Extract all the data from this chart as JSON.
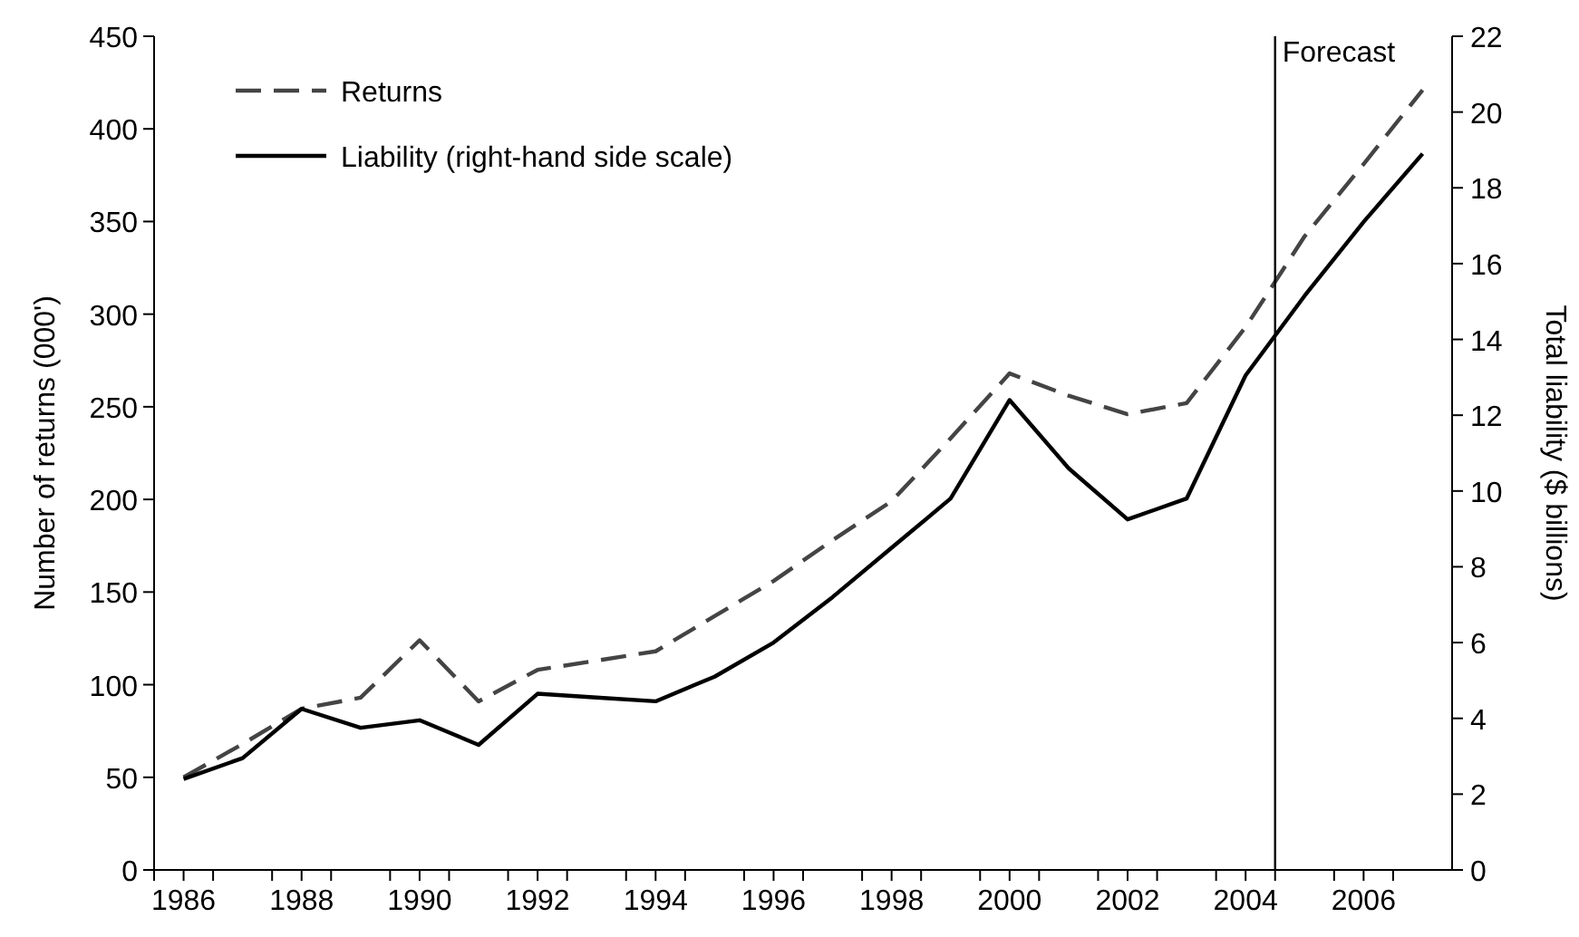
{
  "chart_data": {
    "type": "line",
    "xlabel": null,
    "ylabel": "Number of returns (000')",
    "y2label": "Total liability ($ billions)",
    "x": [
      1986,
      1987,
      1988,
      1989,
      1990,
      1991,
      1992,
      1993,
      1994,
      1995,
      1996,
      1997,
      1998,
      1999,
      2000,
      2001,
      2002,
      2003,
      2004,
      2005,
      2006,
      2007
    ],
    "series": [
      {
        "name": "Returns",
        "color": "#444444",
        "line_style": "dashed",
        "values": [
          50,
          68,
          87,
          93,
          124,
          91,
          108,
          113,
          118,
          137,
          156,
          178,
          199,
          233,
          268,
          256,
          246,
          252,
          293,
          342,
          381,
          421
        ]
      },
      {
        "name": "Liability (right-hand side scale)",
        "color": "#000000",
        "line_style": "solid",
        "axis": "y2",
        "values": [
          2.4,
          2.95,
          4.25,
          3.75,
          3.95,
          3.3,
          4.65,
          4.55,
          4.45,
          5.1,
          6.0,
          7.2,
          8.5,
          9.8,
          12.4,
          10.6,
          9.25,
          9.8,
          13.05,
          15.15,
          17.1,
          18.9
        ]
      }
    ],
    "xlim": [
      1985.5,
      2007.5
    ],
    "xticks": [
      {
        "value": 1985.5,
        "label": null
      },
      {
        "value": 1986,
        "label": "1986"
      },
      {
        "value": 1986.5,
        "label": null
      },
      {
        "value": 1987.5,
        "label": null
      },
      {
        "value": 1988,
        "label": "1988"
      },
      {
        "value": 1988.5,
        "label": null
      },
      {
        "value": 1989.5,
        "label": null
      },
      {
        "value": 1990,
        "label": "1990"
      },
      {
        "value": 1990.5,
        "label": null
      },
      {
        "value": 1991.5,
        "label": null
      },
      {
        "value": 1992,
        "label": "1992"
      },
      {
        "value": 1992.5,
        "label": null
      },
      {
        "value": 1993.5,
        "label": null
      },
      {
        "value": 1994,
        "label": "1994"
      },
      {
        "value": 1994.5,
        "label": null
      },
      {
        "value": 1995.5,
        "label": null
      },
      {
        "value": 1996,
        "label": "1996"
      },
      {
        "value": 1996.5,
        "label": null
      },
      {
        "value": 1997.5,
        "label": null
      },
      {
        "value": 1998,
        "label": "1998"
      },
      {
        "value": 1998.5,
        "label": null
      },
      {
        "value": 1999.5,
        "label": null
      },
      {
        "value": 2000,
        "label": "2000"
      },
      {
        "value": 2000.5,
        "label": null
      },
      {
        "value": 2001.5,
        "label": null
      },
      {
        "value": 2002,
        "label": "2002"
      },
      {
        "value": 2002.5,
        "label": null
      },
      {
        "value": 2003.5,
        "label": null
      },
      {
        "value": 2004,
        "label": "2004"
      },
      {
        "value": 2004.5,
        "label": null
      },
      {
        "value": 2005.5,
        "label": null
      },
      {
        "value": 2006,
        "label": "2006"
      },
      {
        "value": 2006.5,
        "label": null
      }
    ],
    "ylim": [
      0,
      450
    ],
    "yticks": [
      0,
      50,
      100,
      150,
      200,
      250,
      300,
      350,
      400,
      450
    ],
    "y2lim": [
      0,
      22
    ],
    "y2ticks": [
      0,
      2,
      4,
      6,
      8,
      10,
      12,
      14,
      16,
      18,
      20,
      22
    ],
    "ref_lines": [
      {
        "axis": "x",
        "value": 2004.5,
        "label": "Forecast",
        "color": "#000000"
      }
    ],
    "legend": "top left",
    "grid": false,
    "marker": "none"
  }
}
